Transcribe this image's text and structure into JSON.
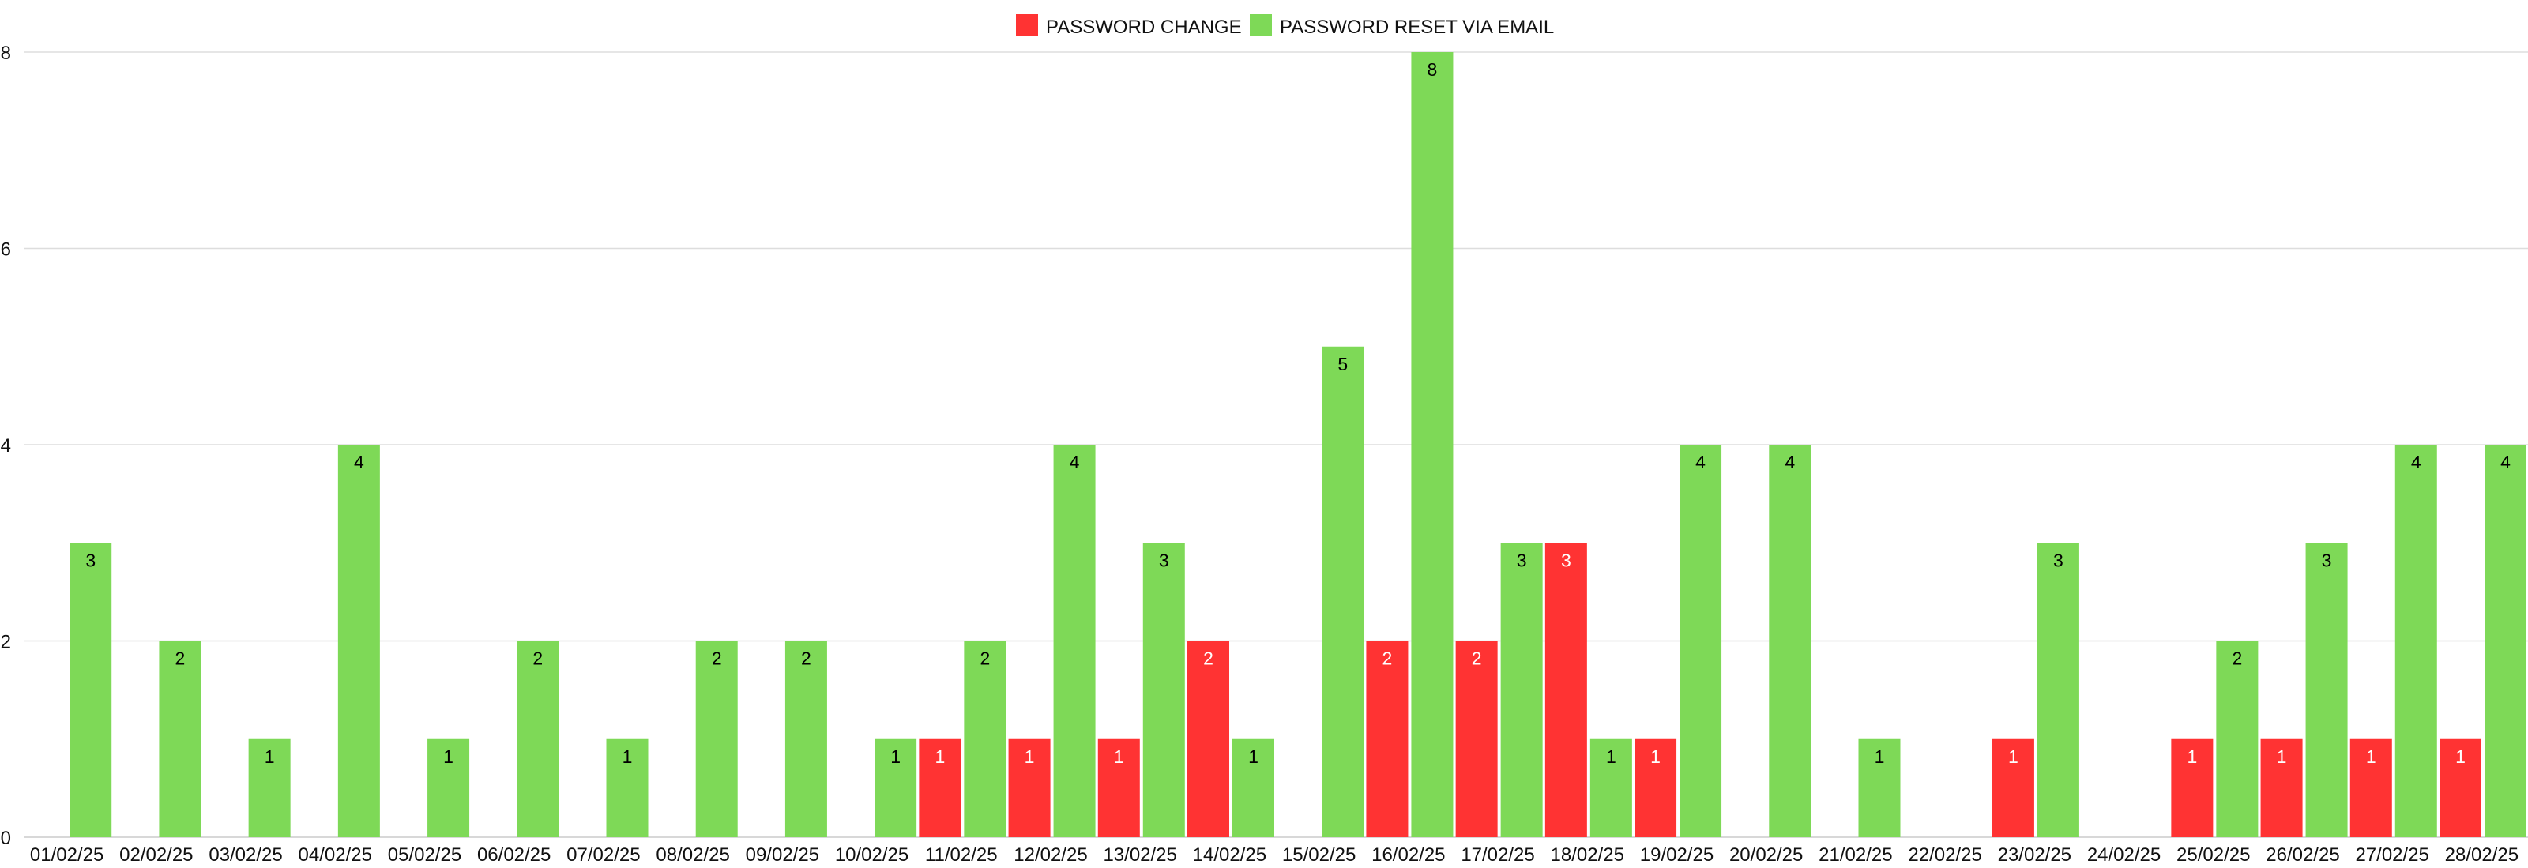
{
  "chart_data": {
    "type": "bar",
    "title": "",
    "xlabel": "",
    "ylabel": "",
    "ylim": [
      0,
      8
    ],
    "yticks": [
      0,
      2,
      4,
      6,
      8
    ],
    "grid": true,
    "legend_position": "top-center",
    "categories": [
      "01/02/25",
      "02/02/25",
      "03/02/25",
      "04/02/25",
      "05/02/25",
      "06/02/25",
      "07/02/25",
      "08/02/25",
      "09/02/25",
      "10/02/25",
      "11/02/25",
      "12/02/25",
      "13/02/25",
      "14/02/25",
      "15/02/25",
      "16/02/25",
      "17/02/25",
      "18/02/25",
      "19/02/25",
      "20/02/25",
      "21/02/25",
      "22/02/25",
      "23/02/25",
      "24/02/25",
      "25/02/25",
      "26/02/25",
      "27/02/25",
      "28/02/25"
    ],
    "series": [
      {
        "name": "PASSWORD CHANGE",
        "color": "#ff3333",
        "label_color": "#ffffff",
        "values": [
          0,
          0,
          0,
          0,
          0,
          0,
          0,
          0,
          0,
          0,
          1,
          1,
          1,
          2,
          0,
          2,
          2,
          3,
          1,
          0,
          0,
          0,
          1,
          0,
          1,
          1,
          1,
          1
        ]
      },
      {
        "name": "PASSWORD RESET VIA EMAIL",
        "color": "#7ed957",
        "label_color": "#000000",
        "values": [
          3,
          2,
          1,
          4,
          1,
          2,
          1,
          2,
          2,
          1,
          2,
          4,
          3,
          1,
          5,
          8,
          3,
          1,
          4,
          4,
          1,
          0,
          3,
          0,
          2,
          3,
          4,
          4
        ]
      }
    ]
  }
}
